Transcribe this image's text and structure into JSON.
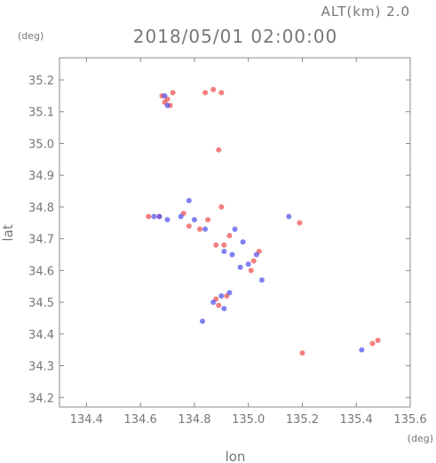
{
  "chart_data": {
    "type": "scatter",
    "title": "2018/05/01 02:00:00",
    "subtitle": "ALT(km) 2.0",
    "xlabel": "lon",
    "ylabel": "lat",
    "x_unit": "(deg)",
    "y_unit": "(deg)",
    "xlim": [
      134.3,
      135.6
    ],
    "ylim": [
      34.17,
      35.27
    ],
    "x_ticks": [
      134.4,
      134.6,
      134.8,
      135.0,
      135.2,
      135.4,
      135.6
    ],
    "x_tick_labels": [
      "134.4",
      "134.6",
      "134.8",
      "135.0",
      "135.2",
      "135.4",
      "135.6"
    ],
    "y_ticks": [
      34.2,
      34.3,
      34.4,
      34.5,
      34.6,
      34.7,
      34.8,
      34.9,
      35.0,
      35.1,
      35.2
    ],
    "y_tick_labels": [
      "34.2",
      "34.3",
      "34.4",
      "34.5",
      "34.6",
      "34.7",
      "34.8",
      "34.9",
      "35.0",
      "35.1",
      "35.2"
    ],
    "grid": false,
    "colors": {
      "positive": "#ee5555",
      "negative": "#5555ee",
      "axis": "#888888",
      "text": "#777777"
    },
    "series": [
      {
        "values": [
          [
            134.68,
            35.15
          ],
          [
            134.7,
            35.14
          ],
          [
            134.69,
            35.13
          ],
          [
            134.72,
            35.16
          ],
          [
            134.71,
            35.12
          ],
          [
            134.84,
            35.16
          ],
          [
            134.87,
            35.17
          ],
          [
            134.9,
            35.16
          ],
          [
            134.9,
            34.8
          ],
          [
            134.85,
            34.76
          ],
          [
            134.82,
            34.73
          ],
          [
            134.88,
            34.68
          ],
          [
            134.93,
            34.71
          ],
          [
            134.91,
            34.68
          ],
          [
            135.02,
            34.63
          ],
          [
            135.01,
            34.6
          ],
          [
            135.04,
            34.66
          ],
          [
            134.88,
            34.51
          ],
          [
            134.92,
            34.52
          ],
          [
            134.89,
            34.49
          ],
          [
            134.76,
            34.78
          ],
          [
            134.78,
            34.74
          ],
          [
            134.63,
            34.77
          ],
          [
            134.67,
            34.77
          ],
          [
            135.2,
            34.34
          ],
          [
            135.46,
            34.37
          ],
          [
            135.48,
            34.38
          ],
          [
            135.19,
            34.75
          ],
          [
            134.89,
            34.98
          ]
        ]
      },
      {
        "values": [
          [
            134.69,
            35.15
          ],
          [
            134.7,
            35.12
          ],
          [
            134.78,
            34.82
          ],
          [
            134.8,
            34.76
          ],
          [
            134.84,
            34.73
          ],
          [
            134.95,
            34.73
          ],
          [
            134.98,
            34.69
          ],
          [
            135.03,
            34.65
          ],
          [
            134.94,
            34.65
          ],
          [
            134.91,
            34.66
          ],
          [
            134.87,
            34.5
          ],
          [
            134.9,
            34.52
          ],
          [
            134.93,
            34.53
          ],
          [
            134.91,
            34.48
          ],
          [
            134.67,
            34.77
          ],
          [
            134.75,
            34.77
          ],
          [
            134.65,
            34.77
          ],
          [
            134.7,
            34.76
          ],
          [
            135.42,
            34.35
          ],
          [
            135.15,
            34.77
          ],
          [
            135.05,
            34.57
          ],
          [
            134.83,
            34.44
          ],
          [
            134.97,
            34.61
          ],
          [
            135.0,
            34.62
          ]
        ]
      }
    ]
  }
}
